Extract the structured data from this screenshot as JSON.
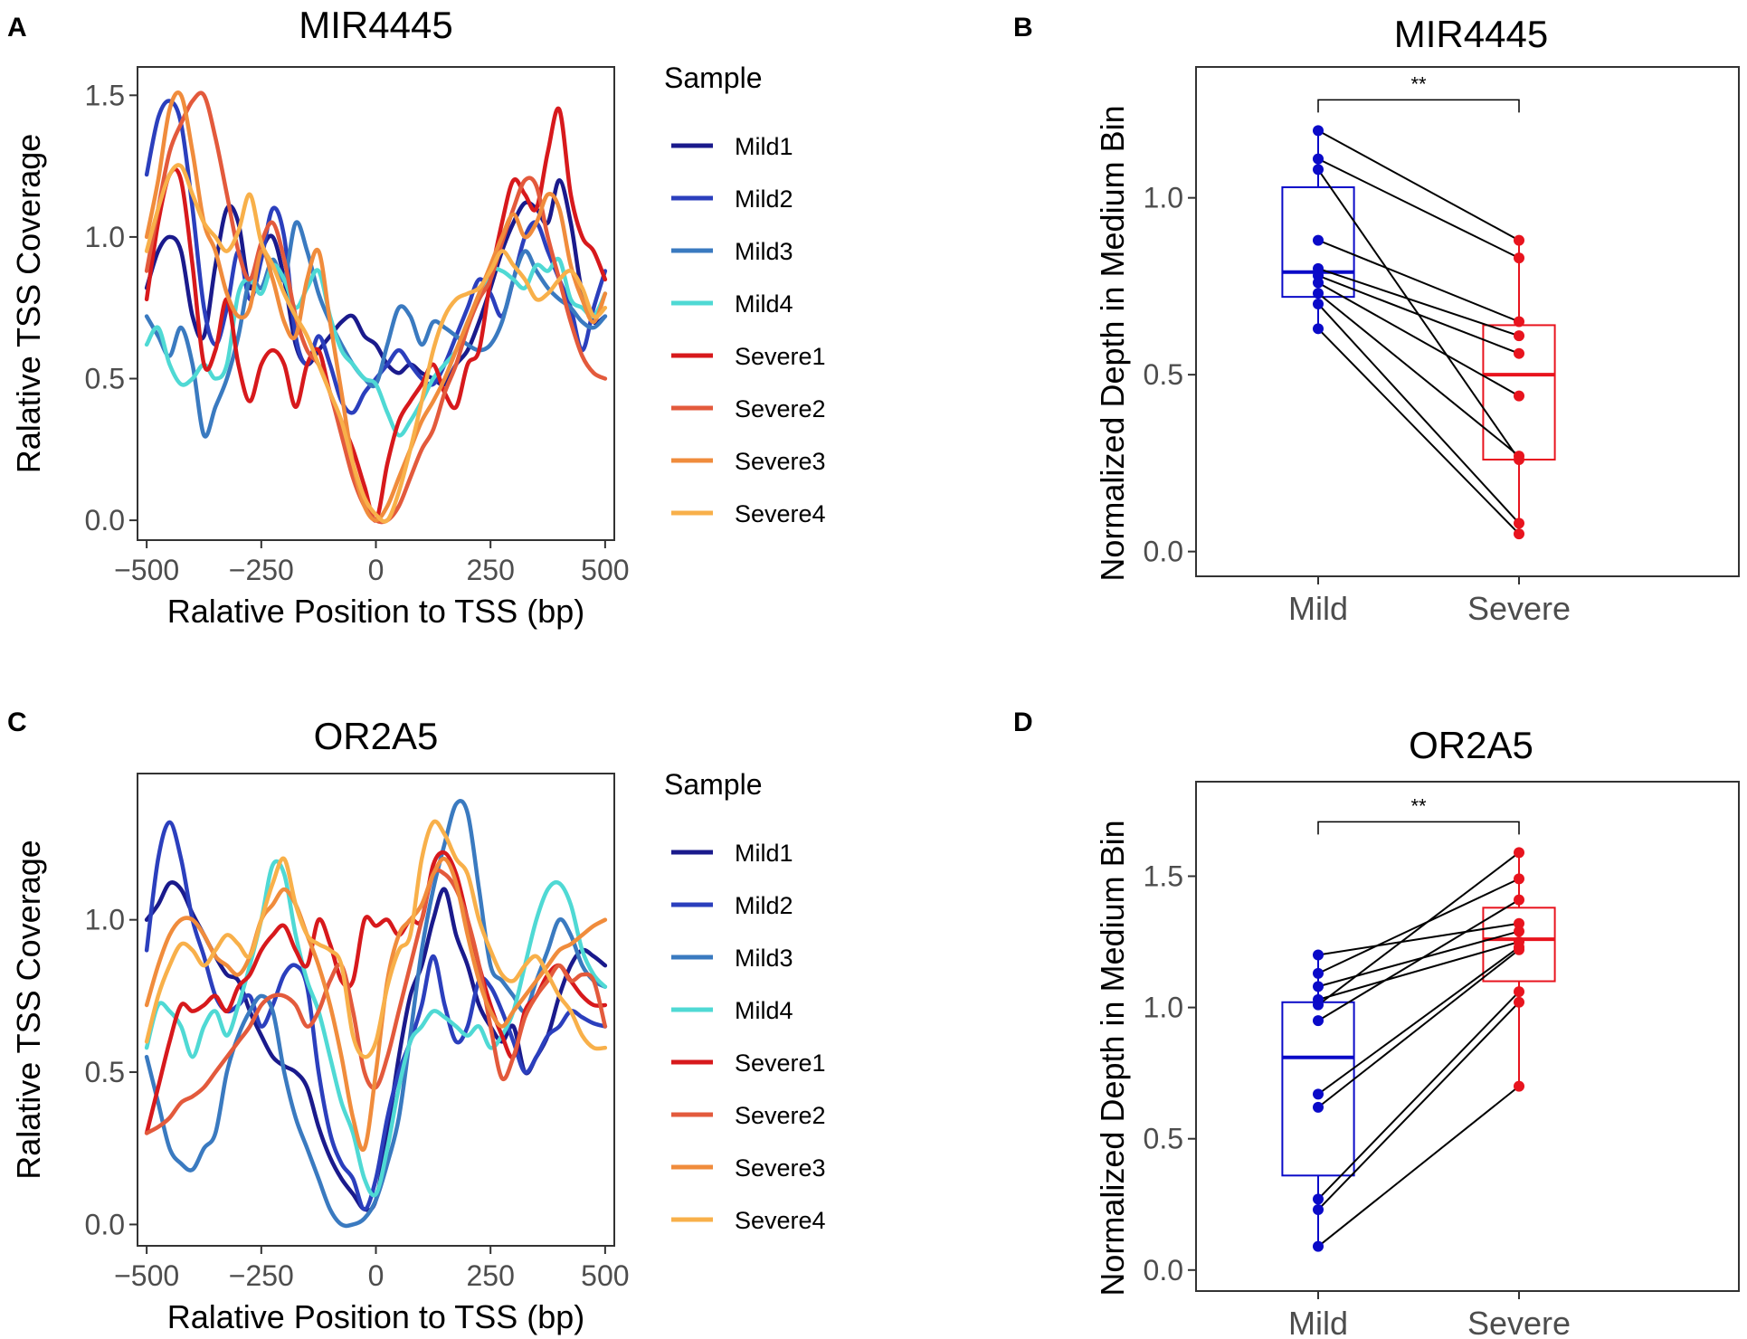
{
  "figure": {
    "panels": [
      "A",
      "B",
      "C",
      "D"
    ]
  },
  "chart_data": [
    {
      "id": "A",
      "type": "line",
      "title": "MIR4445",
      "xlabel": "Ralative Position to TSS (bp)",
      "ylabel": "Ralative TSS Coverage",
      "xlim": [
        -520,
        520
      ],
      "ylim": [
        -0.07,
        1.6
      ],
      "xticks": [
        -500,
        -250,
        0,
        250,
        500
      ],
      "xtick_labels": [
        "−500",
        "−250",
        "0",
        "250",
        "500"
      ],
      "yticks": [
        0,
        0.5,
        1.0,
        1.5
      ],
      "ytick_labels": [
        "0.0",
        "0.5",
        "1.0",
        "1.5"
      ],
      "legend_title": "Sample",
      "x": [
        -500,
        -475,
        -450,
        -425,
        -400,
        -375,
        -350,
        -325,
        -300,
        -275,
        -250,
        -225,
        -200,
        -175,
        -150,
        -125,
        -100,
        -75,
        -50,
        -25,
        0,
        25,
        50,
        75,
        100,
        125,
        150,
        175,
        200,
        225,
        250,
        275,
        300,
        325,
        350,
        375,
        400,
        425,
        450,
        475,
        500
      ],
      "series": [
        {
          "name": "Mild1",
          "color": "#1a1a8c",
          "values": [
            0.82,
            0.95,
            1.0,
            0.95,
            0.72,
            0.65,
            0.9,
            1.1,
            1.05,
            0.82,
            0.95,
            1.0,
            0.85,
            0.62,
            0.55,
            0.6,
            0.65,
            0.7,
            0.72,
            0.65,
            0.62,
            0.55,
            0.52,
            0.55,
            0.52,
            0.5,
            0.48,
            0.55,
            0.6,
            0.7,
            0.82,
            0.95,
            1.05,
            1.12,
            1.1,
            1.05,
            1.2,
            1.05,
            0.8,
            0.7,
            0.72
          ]
        },
        {
          "name": "Mild2",
          "color": "#2b3fbd",
          "values": [
            1.22,
            1.42,
            1.48,
            1.4,
            1.1,
            0.75,
            0.62,
            0.75,
            0.95,
            0.78,
            0.92,
            1.1,
            1.0,
            0.65,
            0.55,
            0.65,
            0.55,
            0.42,
            0.38,
            0.45,
            0.5,
            0.55,
            0.6,
            0.55,
            0.5,
            0.48,
            0.55,
            0.65,
            0.75,
            0.85,
            0.8,
            0.72,
            0.85,
            1.0,
            1.05,
            0.95,
            0.85,
            0.75,
            0.6,
            0.75,
            0.88
          ]
        },
        {
          "name": "Mild3",
          "color": "#3a7ac0",
          "values": [
            0.72,
            0.65,
            0.58,
            0.68,
            0.55,
            0.3,
            0.4,
            0.5,
            0.65,
            0.85,
            0.82,
            0.92,
            0.85,
            1.05,
            0.95,
            0.8,
            0.7,
            0.62,
            0.55,
            0.5,
            0.48,
            0.62,
            0.75,
            0.72,
            0.62,
            0.7,
            0.68,
            0.65,
            0.62,
            0.6,
            0.62,
            0.7,
            0.85,
            0.95,
            0.88,
            0.82,
            0.78,
            0.75,
            0.7,
            0.68,
            0.72
          ]
        },
        {
          "name": "Mild4",
          "color": "#4fd9d4",
          "values": [
            0.62,
            0.68,
            0.55,
            0.48,
            0.5,
            0.55,
            0.5,
            0.55,
            0.8,
            0.85,
            0.8,
            0.9,
            0.85,
            0.75,
            0.82,
            0.88,
            0.72,
            0.6,
            0.55,
            0.5,
            0.48,
            0.38,
            0.3,
            0.35,
            0.42,
            0.5,
            0.55,
            0.6,
            0.7,
            0.78,
            0.88,
            0.88,
            0.85,
            0.82,
            0.9,
            0.88,
            0.92,
            0.78,
            0.75,
            0.72,
            0.8
          ]
        },
        {
          "name": "Severe1",
          "color": "#d7191c",
          "values": [
            0.78,
            1.05,
            1.22,
            1.2,
            0.9,
            0.55,
            0.6,
            0.78,
            0.55,
            0.42,
            0.55,
            0.6,
            0.55,
            0.4,
            0.55,
            0.6,
            0.45,
            0.35,
            0.25,
            0.12,
            0.0,
            0.2,
            0.35,
            0.42,
            0.48,
            0.55,
            0.45,
            0.4,
            0.55,
            0.6,
            0.85,
            1.05,
            1.2,
            1.15,
            1.1,
            1.3,
            1.45,
            1.15,
            1.0,
            0.95,
            0.85
          ]
        },
        {
          "name": "Severe2",
          "color": "#e35a3c",
          "values": [
            0.88,
            1.1,
            1.3,
            1.4,
            1.48,
            1.5,
            1.35,
            1.15,
            0.95,
            0.85,
            0.98,
            1.05,
            0.92,
            0.72,
            0.6,
            0.55,
            0.45,
            0.3,
            0.15,
            0.05,
            0.0,
            0.0,
            0.05,
            0.15,
            0.25,
            0.32,
            0.45,
            0.55,
            0.68,
            0.78,
            0.85,
            0.98,
            1.1,
            1.2,
            1.18,
            1.0,
            0.85,
            0.7,
            0.58,
            0.52,
            0.5
          ]
        },
        {
          "name": "Severe3",
          "color": "#f08c3c",
          "values": [
            1.0,
            1.2,
            1.45,
            1.5,
            1.3,
            1.05,
            0.95,
            0.8,
            0.72,
            0.75,
            0.95,
            0.85,
            0.7,
            0.65,
            0.85,
            0.95,
            0.7,
            0.45,
            0.2,
            0.05,
            0.0,
            0.05,
            0.15,
            0.25,
            0.35,
            0.42,
            0.5,
            0.6,
            0.7,
            0.8,
            0.9,
            1.0,
            1.08,
            1.0,
            1.05,
            1.15,
            1.1,
            0.9,
            0.78,
            0.7,
            0.8
          ]
        },
        {
          "name": "Severe4",
          "color": "#f8b04a",
          "values": [
            0.95,
            1.1,
            1.22,
            1.25,
            1.15,
            1.05,
            1.0,
            0.95,
            1.02,
            1.15,
            0.98,
            0.9,
            0.8,
            0.72,
            0.65,
            0.55,
            0.45,
            0.35,
            0.2,
            0.08,
            0.02,
            0.0,
            0.1,
            0.25,
            0.42,
            0.6,
            0.72,
            0.78,
            0.8,
            0.82,
            0.88,
            0.95,
            0.9,
            0.85,
            0.78,
            0.8,
            0.85,
            0.88,
            0.82,
            0.72,
            0.75
          ]
        }
      ]
    },
    {
      "id": "B",
      "type": "box",
      "title": "MIR4445",
      "xlabel": "",
      "ylabel": "Normalized Depth in Medium Bin",
      "ylim": [
        -0.07,
        1.37
      ],
      "yticks": [
        0,
        0.5,
        1.0
      ],
      "ytick_labels": [
        "0.0",
        "0.5",
        "1.0"
      ],
      "categories": [
        "Mild",
        "Severe"
      ],
      "significance": "**",
      "boxes": [
        {
          "group": "Mild",
          "color": "#0a0ac8",
          "q1": 0.72,
          "median": 0.79,
          "q3": 1.03,
          "whisker_low": 0.63,
          "whisker_high": 1.19
        },
        {
          "group": "Severe",
          "color": "#e8141e",
          "q1": 0.26,
          "median": 0.5,
          "q3": 0.64,
          "whisker_low": 0.05,
          "whisker_high": 0.88
        }
      ],
      "pairs": [
        [
          1.19,
          0.88
        ],
        [
          1.11,
          0.83
        ],
        [
          1.08,
          0.26
        ],
        [
          0.88,
          0.65
        ],
        [
          0.8,
          0.61
        ],
        [
          0.78,
          0.56
        ],
        [
          0.76,
          0.44
        ],
        [
          0.73,
          0.27
        ],
        [
          0.7,
          0.08
        ],
        [
          0.63,
          0.05
        ]
      ]
    },
    {
      "id": "C",
      "type": "line",
      "title": "OR2A5",
      "xlabel": "Ralative Position to TSS (bp)",
      "ylabel": "Ralative TSS Coverage",
      "xlim": [
        -520,
        520
      ],
      "ylim": [
        -0.07,
        1.48
      ],
      "xticks": [
        -500,
        -250,
        0,
        250,
        500
      ],
      "xtick_labels": [
        "−500",
        "−250",
        "0",
        "250",
        "500"
      ],
      "yticks": [
        0,
        0.5,
        1.0
      ],
      "ytick_labels": [
        "0.0",
        "0.5",
        "1.0"
      ],
      "legend_title": "Sample",
      "x": [
        -500,
        -475,
        -450,
        -425,
        -400,
        -375,
        -350,
        -325,
        -300,
        -275,
        -250,
        -225,
        -200,
        -175,
        -150,
        -125,
        -100,
        -75,
        -50,
        -25,
        0,
        25,
        50,
        75,
        100,
        125,
        150,
        175,
        200,
        225,
        250,
        275,
        300,
        325,
        350,
        375,
        400,
        425,
        450,
        475,
        500
      ],
      "series": [
        {
          "name": "Mild1",
          "color": "#1a1a8c",
          "values": [
            1.0,
            1.05,
            1.12,
            1.1,
            1.02,
            0.95,
            0.88,
            0.82,
            0.8,
            0.7,
            0.62,
            0.55,
            0.52,
            0.5,
            0.45,
            0.32,
            0.22,
            0.15,
            0.1,
            0.05,
            0.08,
            0.3,
            0.55,
            0.75,
            0.85,
            1.0,
            1.1,
            0.95,
            0.85,
            0.72,
            0.65,
            0.6,
            0.65,
            0.5,
            0.55,
            0.62,
            0.75,
            0.85,
            0.9,
            0.88,
            0.85
          ]
        },
        {
          "name": "Mild2",
          "color": "#2b3fbd",
          "values": [
            0.9,
            1.2,
            1.32,
            1.2,
            1.0,
            0.88,
            0.75,
            0.7,
            0.72,
            0.75,
            0.65,
            0.72,
            0.82,
            0.85,
            0.78,
            0.5,
            0.3,
            0.2,
            0.15,
            0.05,
            0.15,
            0.35,
            0.5,
            0.6,
            0.72,
            0.88,
            0.72,
            0.6,
            0.65,
            0.8,
            0.78,
            0.7,
            0.6,
            0.5,
            0.55,
            0.62,
            0.65,
            0.7,
            0.68,
            0.66,
            0.65
          ]
        },
        {
          "name": "Mild3",
          "color": "#3a7ac0",
          "values": [
            0.55,
            0.4,
            0.25,
            0.2,
            0.18,
            0.25,
            0.3,
            0.5,
            0.62,
            0.7,
            0.75,
            0.7,
            0.5,
            0.35,
            0.25,
            0.15,
            0.05,
            0.0,
            0.0,
            0.02,
            0.08,
            0.2,
            0.35,
            0.62,
            0.9,
            1.1,
            1.25,
            1.38,
            1.35,
            1.1,
            0.85,
            0.8,
            0.75,
            0.7,
            0.8,
            0.9,
            1.0,
            0.95,
            0.85,
            0.8,
            0.78
          ]
        },
        {
          "name": "Mild4",
          "color": "#4fd9d4",
          "values": [
            0.58,
            0.72,
            0.7,
            0.65,
            0.55,
            0.65,
            0.7,
            0.62,
            0.72,
            0.85,
            1.0,
            1.18,
            1.15,
            0.95,
            0.8,
            0.7,
            0.55,
            0.4,
            0.3,
            0.15,
            0.1,
            0.25,
            0.45,
            0.6,
            0.65,
            0.7,
            0.68,
            0.65,
            0.62,
            0.65,
            0.58,
            0.62,
            0.7,
            0.85,
            1.0,
            1.1,
            1.12,
            1.05,
            0.9,
            0.82,
            0.78
          ]
        },
        {
          "name": "Severe1",
          "color": "#d7191c",
          "values": [
            0.3,
            0.45,
            0.6,
            0.72,
            0.7,
            0.72,
            0.75,
            0.7,
            0.78,
            0.82,
            0.9,
            0.95,
            0.98,
            0.9,
            0.85,
            1.0,
            0.92,
            0.8,
            0.8,
            1.0,
            0.98,
            1.0,
            0.95,
            1.0,
            1.0,
            1.18,
            1.22,
            1.15,
            1.0,
            0.85,
            0.72,
            0.62,
            0.55,
            0.7,
            0.75,
            0.82,
            0.85,
            0.8,
            0.75,
            0.72,
            0.72
          ]
        },
        {
          "name": "Severe2",
          "color": "#e35a3c",
          "values": [
            0.3,
            0.32,
            0.35,
            0.4,
            0.42,
            0.45,
            0.5,
            0.55,
            0.6,
            0.65,
            0.72,
            0.75,
            0.75,
            0.72,
            0.65,
            0.7,
            0.8,
            0.85,
            0.7,
            0.5,
            0.45,
            0.55,
            0.7,
            0.85,
            1.0,
            1.15,
            1.15,
            1.1,
            1.0,
            0.85,
            0.65,
            0.48,
            0.55,
            0.68,
            0.75,
            0.8,
            0.85,
            0.8,
            0.82,
            0.8,
            0.65
          ]
        },
        {
          "name": "Severe3",
          "color": "#f08c3c",
          "values": [
            0.72,
            0.85,
            0.95,
            1.0,
            1.0,
            0.95,
            0.88,
            0.85,
            0.82,
            0.88,
            1.0,
            1.05,
            1.1,
            1.05,
            0.95,
            0.85,
            0.72,
            0.55,
            0.35,
            0.25,
            0.5,
            0.8,
            0.95,
            1.0,
            1.05,
            1.15,
            1.2,
            1.12,
            0.95,
            0.8,
            0.7,
            0.65,
            0.7,
            0.75,
            0.8,
            0.85,
            0.9,
            0.92,
            0.95,
            0.98,
            1.0
          ]
        },
        {
          "name": "Severe4",
          "color": "#f8b04a",
          "values": [
            0.6,
            0.75,
            0.85,
            0.92,
            0.9,
            0.85,
            0.9,
            0.95,
            0.92,
            0.88,
            1.0,
            1.12,
            1.2,
            1.05,
            0.95,
            0.92,
            0.9,
            0.85,
            0.62,
            0.55,
            0.6,
            0.78,
            0.9,
            0.95,
            1.2,
            1.32,
            1.28,
            1.2,
            1.15,
            1.0,
            0.9,
            0.82,
            0.8,
            0.85,
            0.88,
            0.82,
            0.75,
            0.7,
            0.62,
            0.58,
            0.58
          ]
        }
      ]
    },
    {
      "id": "D",
      "type": "box",
      "title": "OR2A5",
      "xlabel": "",
      "ylabel": "Normalized Depth in Medium Bin",
      "ylim": [
        -0.08,
        1.86
      ],
      "yticks": [
        0,
        0.5,
        1.0,
        1.5
      ],
      "ytick_labels": [
        "0.0",
        "0.5",
        "1.0",
        "1.5"
      ],
      "categories": [
        "Mild",
        "Severe"
      ],
      "significance": "**",
      "boxes": [
        {
          "group": "Mild",
          "color": "#0a0ac8",
          "q1": 0.36,
          "median": 0.81,
          "q3": 1.02,
          "whisker_low": 0.09,
          "whisker_high": 1.2
        },
        {
          "group": "Severe",
          "color": "#e8141e",
          "q1": 1.1,
          "median": 1.26,
          "q3": 1.38,
          "whisker_low": 0.7,
          "whisker_high": 1.59
        }
      ],
      "pairs": [
        [
          1.2,
          1.32
        ],
        [
          1.13,
          1.49
        ],
        [
          1.08,
          1.29
        ],
        [
          1.03,
          1.25
        ],
        [
          1.01,
          1.59
        ],
        [
          0.95,
          1.41
        ],
        [
          0.67,
          1.23
        ],
        [
          0.62,
          1.22
        ],
        [
          0.27,
          1.06
        ],
        [
          0.23,
          1.02
        ],
        [
          0.09,
          0.7
        ]
      ]
    }
  ]
}
